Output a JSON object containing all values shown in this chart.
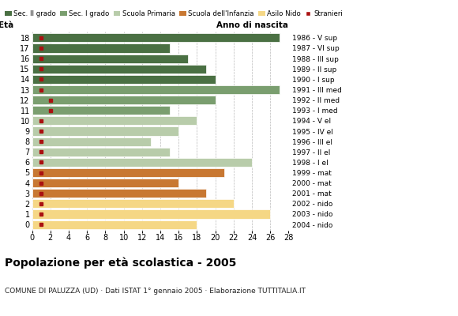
{
  "ages": [
    18,
    17,
    16,
    15,
    14,
    13,
    12,
    11,
    10,
    9,
    8,
    7,
    6,
    5,
    4,
    3,
    2,
    1,
    0
  ],
  "years": [
    "1986 - V sup",
    "1987 - VI sup",
    "1988 - III sup",
    "1989 - II sup",
    "1990 - I sup",
    "1991 - III med",
    "1992 - II med",
    "1993 - I med",
    "1994 - V el",
    "1995 - IV el",
    "1996 - III el",
    "1997 - II el",
    "1998 - I el",
    "1999 - mat",
    "2000 - mat",
    "2001 - mat",
    "2002 - nido",
    "2003 - nido",
    "2004 - nido"
  ],
  "values": [
    27,
    15,
    17,
    19,
    20,
    27,
    20,
    15,
    18,
    16,
    13,
    15,
    24,
    21,
    16,
    19,
    22,
    26,
    18
  ],
  "foreigners": [
    1,
    1,
    1,
    1,
    1,
    1,
    2,
    2,
    1,
    1,
    1,
    1,
    1,
    1,
    1,
    1,
    1,
    1,
    1
  ],
  "categories": [
    "Sec. II grado",
    "Sec. I grado",
    "Scuola Primaria",
    "Scuola dell'Infanzia",
    "Asilo Nido"
  ],
  "colors": {
    "Sec. II grado": "#4a7043",
    "Sec. I grado": "#7a9e6f",
    "Scuola Primaria": "#b8ccaa",
    "Scuola dell'Infanzia": "#c87832",
    "Asilo Nido": "#f5d785",
    "Stranieri": "#aa1111"
  },
  "bar_colors_by_age": {
    "18": "Sec. II grado",
    "17": "Sec. II grado",
    "16": "Sec. II grado",
    "15": "Sec. II grado",
    "14": "Sec. II grado",
    "13": "Sec. I grado",
    "12": "Sec. I grado",
    "11": "Sec. I grado",
    "10": "Scuola Primaria",
    "9": "Scuola Primaria",
    "8": "Scuola Primaria",
    "7": "Scuola Primaria",
    "6": "Scuola Primaria",
    "5": "Scuola dell'Infanzia",
    "4": "Scuola dell'Infanzia",
    "3": "Scuola dell'Infanzia",
    "2": "Asilo Nido",
    "1": "Asilo Nido",
    "0": "Asilo Nido"
  },
  "title": "Popolazione per età scolastica - 2005",
  "subtitle": "COMUNE DI PALUZZA (UD) · Dati ISTAT 1° gennaio 2005 · Elaborazione TUTTITALIA.IT",
  "xlim": [
    0,
    28
  ],
  "xticks": [
    0,
    2,
    4,
    6,
    8,
    10,
    12,
    14,
    16,
    18,
    20,
    22,
    24,
    26,
    28
  ],
  "eta_label": "Età",
  "anno_label": "Anno di nascita",
  "bg_color": "#ffffff",
  "bar_height": 0.85
}
